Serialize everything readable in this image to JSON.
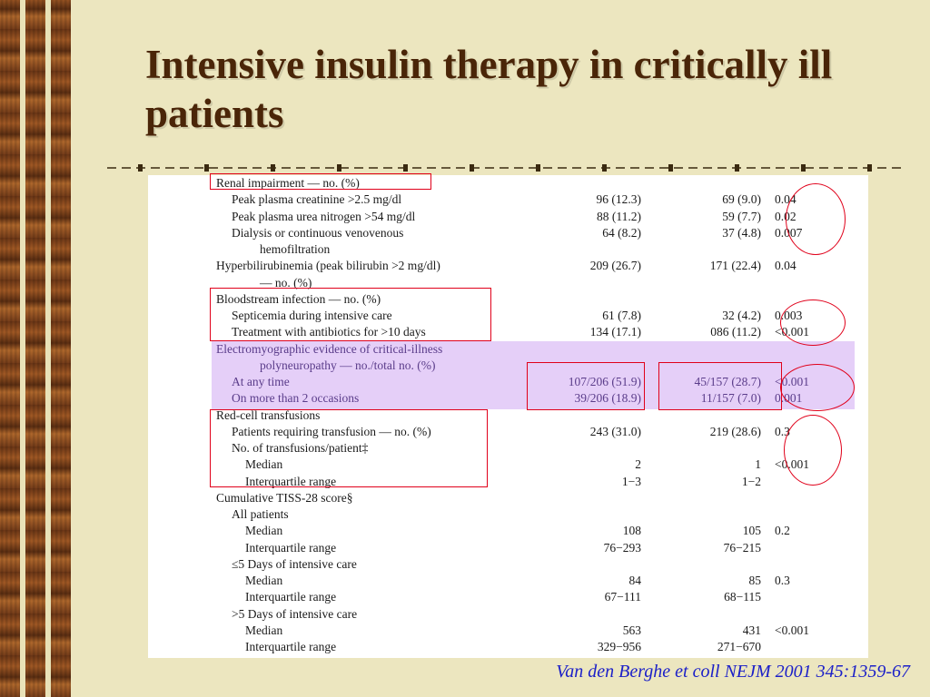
{
  "slide": {
    "title": "Intensive insulin therapy in critically ill patients",
    "citation": "Van den Berghe et coll NEJM 2001  345:1359-67"
  },
  "colors": {
    "title": "#4a2508",
    "background": "#ece6bf",
    "highlight_band": "#e5cff8",
    "annotation": "#e0001a",
    "citation": "#1c20c8"
  },
  "table": {
    "rows": [
      {
        "label": "Renal impairment — no. (%)",
        "a": "",
        "b": "",
        "p": ""
      },
      {
        "label": "Peak plasma creatinine >2.5 mg/dl",
        "a": "96 (12.3)",
        "b": "69 (9.0)",
        "p": "0.04"
      },
      {
        "label": "Peak plasma urea nitrogen >54 mg/dl",
        "a": "88 (11.2)",
        "b": "59 (7.7)",
        "p": "0.02"
      },
      {
        "label": "Dialysis or continuous venovenous",
        "a": "64 (8.2)",
        "b": "37 (4.8)",
        "p": "0.007"
      },
      {
        "label": "hemofiltration",
        "a": "",
        "b": "",
        "p": ""
      },
      {
        "label": "Hyperbilirubinemia (peak bilirubin >2 mg/dl)",
        "a": "209 (26.7)",
        "b": "171 (22.4)",
        "p": "0.04"
      },
      {
        "label": "— no. (%)",
        "a": "",
        "b": "",
        "p": ""
      },
      {
        "label": "Bloodstream infection — no. (%)",
        "a": "",
        "b": "",
        "p": ""
      },
      {
        "label": "Septicemia during intensive care",
        "a": "61 (7.8)",
        "b": "32 (4.2)",
        "p": "0.003"
      },
      {
        "label": "Treatment with antibiotics for >10 days",
        "a": "134 (17.1)",
        "b": "086 (11.2)",
        "p": "<0.001"
      },
      {
        "label": "Electromyographic evidence of critical-illness",
        "a": "",
        "b": "",
        "p": ""
      },
      {
        "label": "polyneuropathy — no./total no. (%)",
        "a": "",
        "b": "",
        "p": ""
      },
      {
        "label": "At any time",
        "a": "107/206 (51.9)",
        "b": "45/157 (28.7)",
        "p": "<0.001"
      },
      {
        "label": "On more than 2 occasions",
        "a": "39/206 (18.9)",
        "b": "11/157 (7.0)",
        "p": "0.001"
      },
      {
        "label": "Red-cell transfusions",
        "a": "",
        "b": "",
        "p": ""
      },
      {
        "label": "Patients requiring transfusion — no. (%)",
        "a": "243 (31.0)",
        "b": "219 (28.6)",
        "p": "0.3"
      },
      {
        "label": "No. of transfusions/patient‡",
        "a": "",
        "b": "",
        "p": ""
      },
      {
        "label": "Median",
        "a": "2",
        "b": "1",
        "p": "<0.001"
      },
      {
        "label": "Interquartile range",
        "a": "1−3",
        "b": "1−2",
        "p": ""
      },
      {
        "label": "Cumulative TISS-28 score§",
        "a": "",
        "b": "",
        "p": ""
      },
      {
        "label": "All patients",
        "a": "",
        "b": "",
        "p": ""
      },
      {
        "label": "Median",
        "a": "108",
        "b": "105",
        "p": "0.2"
      },
      {
        "label": "Interquartile range",
        "a": "76−293",
        "b": "76−215",
        "p": ""
      },
      {
        "label": "≤5 Days of intensive care",
        "a": "",
        "b": "",
        "p": ""
      },
      {
        "label": "Median",
        "a": "84",
        "b": "85",
        "p": "0.3"
      },
      {
        "label": "Interquartile range",
        "a": "67−111",
        "b": "68−115",
        "p": ""
      },
      {
        "label": ">5 Days of intensive care",
        "a": "",
        "b": "",
        "p": ""
      },
      {
        "label": "Median",
        "a": "563",
        "b": "431",
        "p": "<0.001"
      },
      {
        "label": "Interquartile range",
        "a": "329−956",
        "b": "271−670",
        "p": ""
      }
    ]
  }
}
